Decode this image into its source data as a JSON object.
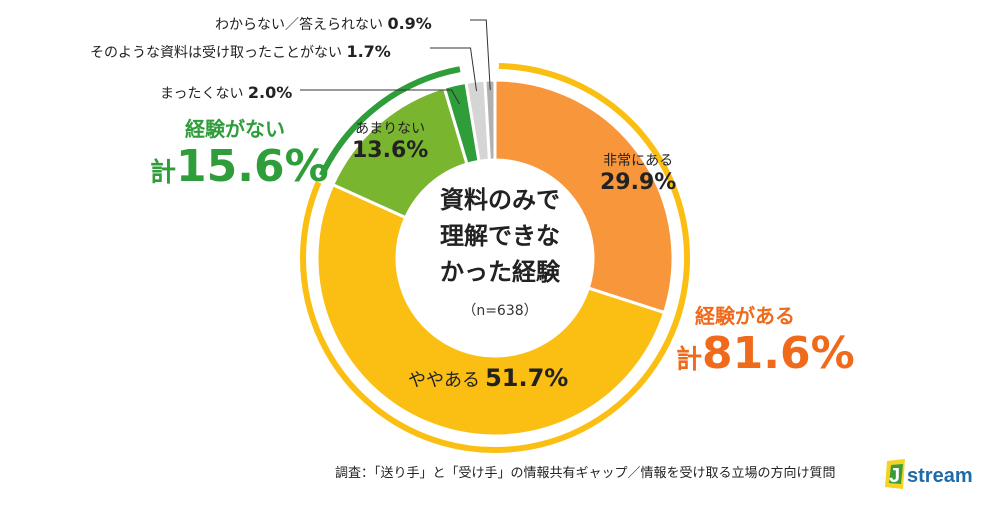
{
  "chart_data": {
    "type": "pie",
    "center_title": [
      "資料のみで",
      "理解できな",
      "かった経験"
    ],
    "sample_size": "（n=638）",
    "slices": [
      {
        "label": "非常にある",
        "value": 29.9,
        "value_text": "29.9%",
        "color": "#f7963a"
      },
      {
        "label": "ややある",
        "value": 51.7,
        "value_text": "51.7%",
        "color": "#fbbf14"
      },
      {
        "label": "あまりない",
        "value": 13.6,
        "value_text": "13.6%",
        "color": "#7ab52f"
      },
      {
        "label": "まったくない",
        "value": 2.0,
        "value_text": "2.0%",
        "color": "#2e9d3a"
      },
      {
        "label": "そのような資料は受け取ったことがない",
        "value": 1.7,
        "value_text": "1.7%",
        "color": "#d5d5d5"
      },
      {
        "label": "わからない／答えられない",
        "value": 0.9,
        "value_text": "0.9%",
        "color": "#b0b0b0"
      }
    ],
    "groups": [
      {
        "label": "経験がある",
        "total_prefix": "計",
        "total": "81.6%",
        "color": "#ef6a1a",
        "arc_color": "#fbbf14"
      },
      {
        "label": "経験がない",
        "total_prefix": "計",
        "total": "15.6%",
        "color": "#2e9d3a",
        "arc_color": "#2e9d3a"
      }
    ]
  },
  "footer": {
    "source": "調査：「送り手」と「受け手」の情報共有ギャップ／情報を受け取る立場の方向け質問",
    "logo_text": "Jstream"
  }
}
